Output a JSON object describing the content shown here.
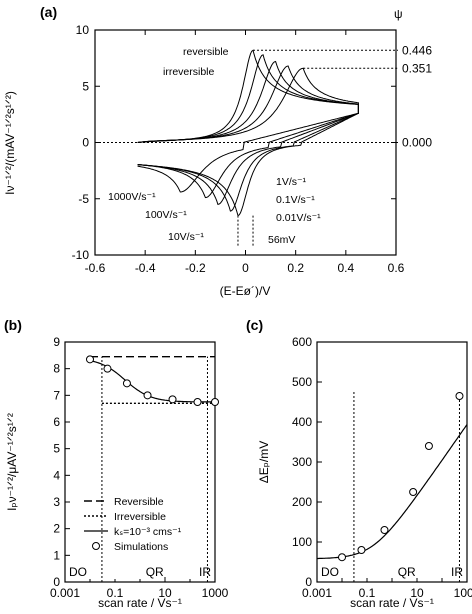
{
  "chart_data": [
    {
      "panel": "(a)",
      "type": "line",
      "xlabel": "(E-Eø´)/V",
      "ylabel": "Iν⁻¹ᐟ²/(mAV⁻¹ᐟ²s¹ᐟ²)",
      "xlim": [
        -0.6,
        0.6
      ],
      "ylim": [
        -10,
        10
      ],
      "xticks": [
        "-0.6",
        "-0.4",
        "-0.2",
        "0",
        "0.2",
        "0.4",
        "0.6"
      ],
      "yticks": [
        "-10",
        "-5",
        "0",
        "5",
        "10"
      ],
      "psi_label": "ψ",
      "psi_values": [
        "0.446",
        "0.351",
        "0.000"
      ],
      "psi_levels": [
        8.2,
        6.6,
        0
      ],
      "curve_labels": [
        "reversible",
        "irreversible"
      ],
      "scan_rate_labels": [
        "1000V/s⁻¹",
        "100V/s⁻¹",
        "10V/s⁻¹",
        "1V/s⁻¹",
        "0.1V/s⁻¹",
        "0.01V/s⁻¹"
      ],
      "delta_label": "56mV",
      "series": [
        {
          "name": "reversible",
          "anodic_peak": [
            0.03,
            8.2
          ],
          "cathodic_peak": [
            -0.03,
            -6.5
          ]
        },
        {
          "anodic_peak": [
            0.07,
            7.8
          ],
          "cathodic_peak": [
            -0.06,
            -6.1
          ]
        },
        {
          "anodic_peak": [
            0.12,
            7.2
          ],
          "cathodic_peak": [
            -0.11,
            -5.5
          ]
        },
        {
          "anodic_peak": [
            0.17,
            6.8
          ],
          "cathodic_peak": [
            -0.16,
            -4.9
          ]
        },
        {
          "name": "irreversible",
          "anodic_peak": [
            0.23,
            6.6
          ],
          "cathodic_peak": [
            -0.26,
            -4.4
          ]
        }
      ]
    },
    {
      "panel": "(b)",
      "type": "line",
      "xlabel": "scan rate / Vs⁻¹",
      "ylabel": "Iₚν⁻¹ᐟ²/μAV⁻¹ᐟ²s¹ᐟ²",
      "xscale": "log",
      "xlim": [
        0.001,
        1000
      ],
      "ylim": [
        0,
        9
      ],
      "xticks": [
        "0.001",
        "0.1",
        "10",
        "1000"
      ],
      "yticks": [
        "0",
        "1",
        "2",
        "3",
        "4",
        "5",
        "6",
        "7",
        "8",
        "9"
      ],
      "reversible": 8.45,
      "irreversible": 6.7,
      "simulation_x": [
        0.01,
        0.05,
        0.3,
        2,
        20,
        200,
        1000
      ],
      "simulation_y": [
        8.35,
        8.0,
        7.45,
        7.0,
        6.85,
        6.75,
        6.75
      ],
      "zone_boundaries": [
        0.03,
        500
      ],
      "zones": [
        "DO",
        "QR",
        "IR"
      ],
      "legend": [
        "Reversible",
        "Irreversible",
        "kₛ=10⁻³ cms⁻¹",
        "Simulations"
      ]
    },
    {
      "panel": "(c)",
      "type": "line",
      "xlabel": "scan rate / Vs⁻¹",
      "ylabel": "ΔEₚ/mV",
      "xscale": "log",
      "xlim": [
        0.001,
        1000
      ],
      "ylim": [
        0,
        600
      ],
      "xticks": [
        "0.001",
        "0.1",
        "10",
        "1000"
      ],
      "yticks": [
        "0",
        "100",
        "200",
        "300",
        "400",
        "500",
        "600"
      ],
      "simulation_x": [
        0.01,
        0.06,
        0.5,
        7,
        30,
        500
      ],
      "simulation_y": [
        62,
        80,
        130,
        225,
        340,
        465
      ],
      "zone_boundaries": [
        0.03,
        500
      ],
      "zones": [
        "DO",
        "QR",
        "IR"
      ]
    }
  ]
}
